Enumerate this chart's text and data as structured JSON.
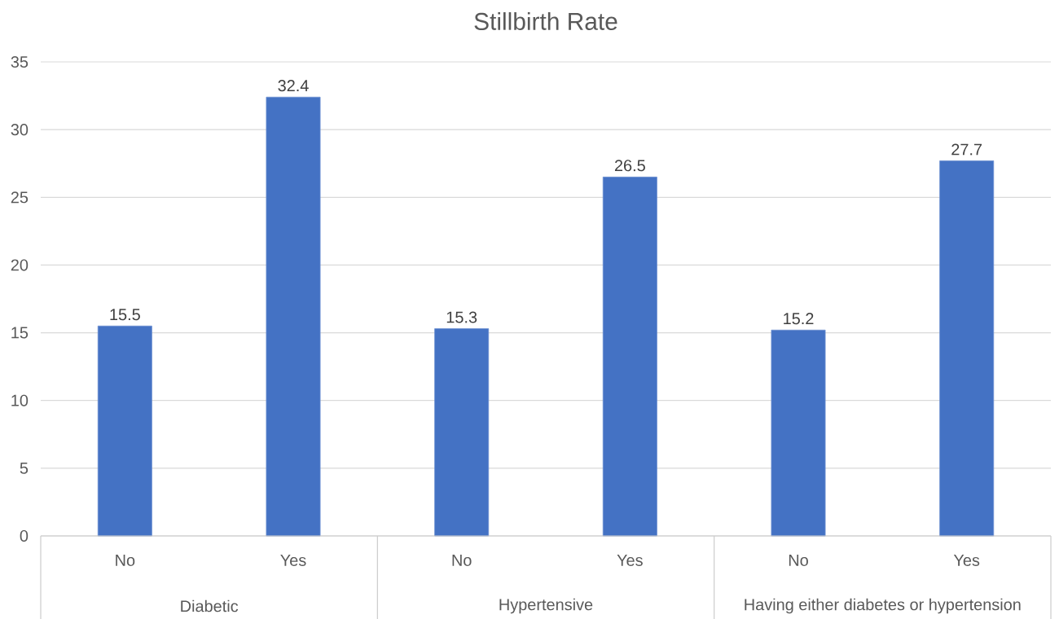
{
  "chart_data": {
    "type": "bar",
    "title": "Stillbirth Rate",
    "categories": [
      "No",
      "Yes",
      "No",
      "Yes",
      "No",
      "Yes"
    ],
    "values": [
      15.5,
      32.4,
      15.3,
      26.5,
      15.2,
      27.7
    ],
    "color": "#4472c4",
    "ylim": [
      0,
      35
    ],
    "yticks": [
      0,
      5,
      10,
      15,
      20,
      25,
      30,
      35
    ],
    "grid": "y",
    "data_labels": true,
    "annotations": [
      "Diabetic",
      "Hypertensive",
      "Having either diabetes or hypertension"
    ]
  }
}
